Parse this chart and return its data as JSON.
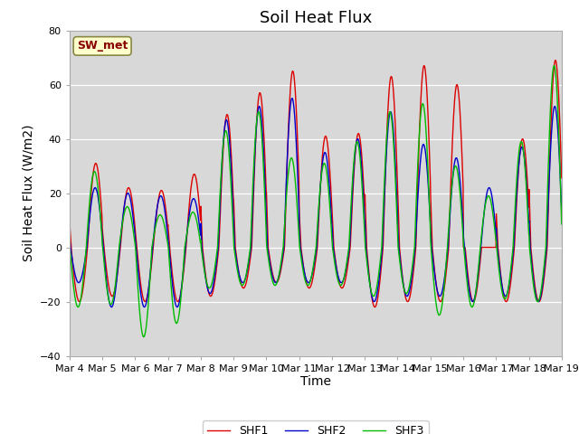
{
  "title": "Soil Heat Flux",
  "ylabel": "Soil Heat Flux (W/m2)",
  "xlabel": "Time",
  "ylim": [
    -40,
    80
  ],
  "yticks": [
    -40,
    -20,
    0,
    20,
    40,
    60,
    80
  ],
  "xtick_labels": [
    "Mar 4",
    "Mar 5",
    "Mar 6",
    "Mar 7",
    "Mar 8",
    "Mar 9",
    "Mar 10",
    "Mar 11",
    "Mar 12",
    "Mar 13",
    "Mar 14",
    "Mar 15",
    "Mar 16",
    "Mar 17",
    "Mar 18",
    "Mar 19"
  ],
  "colors": {
    "SHF1": "#dd0000",
    "SHF2": "#0000cc",
    "SHF3": "#00bb00"
  },
  "legend_box_color": "#ffffcc",
  "legend_box_edge": "#888844",
  "fig_bg": "#ffffff",
  "plot_bg": "#d8d8d8",
  "title_fontsize": 13,
  "axis_fontsize": 10,
  "tick_fontsize": 8,
  "day_peaks_shf1": [
    31,
    22,
    21,
    27,
    49,
    57,
    65,
    41,
    42,
    63,
    67,
    60,
    0,
    40,
    69
  ],
  "day_peaks_shf2": [
    22,
    20,
    19,
    18,
    47,
    52,
    55,
    35,
    40,
    50,
    38,
    33,
    22,
    37,
    52
  ],
  "day_peaks_shf3": [
    28,
    15,
    12,
    13,
    43,
    50,
    33,
    31,
    39,
    50,
    53,
    30,
    19,
    39,
    67
  ],
  "night_troughs_shf1": [
    -20,
    -18,
    -20,
    -20,
    -18,
    -15,
    -13,
    -15,
    -15,
    -22,
    -20,
    -20,
    -20,
    -20,
    -20
  ],
  "night_troughs_shf2": [
    -13,
    -22,
    -22,
    -22,
    -17,
    -13,
    -13,
    -13,
    -13,
    -20,
    -18,
    -18,
    -20,
    -18,
    -20
  ],
  "night_troughs_shf3": [
    -22,
    -21,
    -33,
    -28,
    -15,
    -14,
    -14,
    -14,
    -14,
    -18,
    -17,
    -25,
    -22,
    -19,
    -20
  ],
  "n_days": 15,
  "pts_per_day": 96
}
